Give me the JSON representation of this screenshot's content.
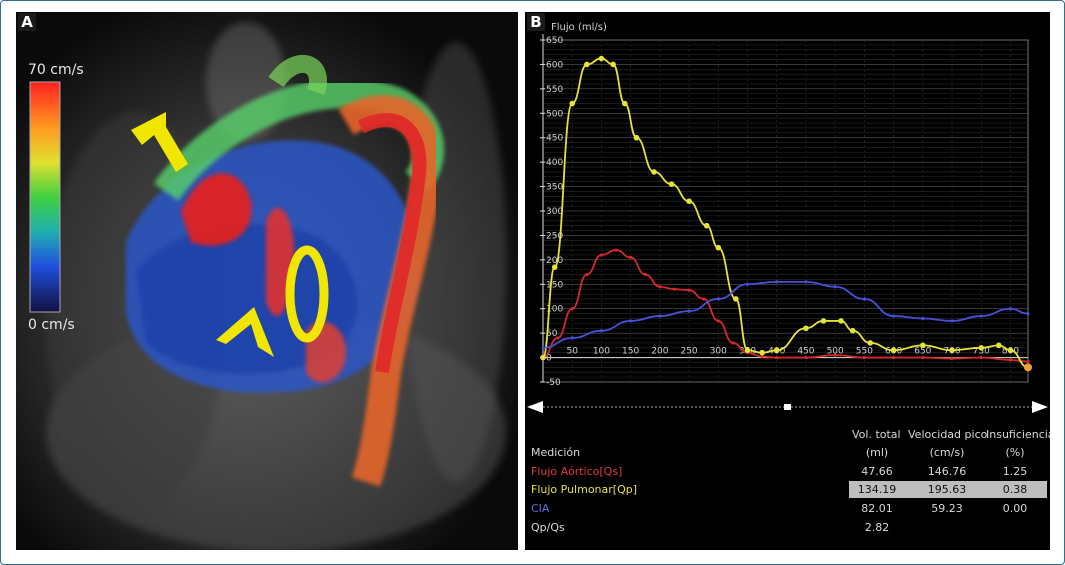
{
  "panel_a": {
    "letter": "A",
    "scale_max": "70 cm/s",
    "scale_min": "0 cm/s"
  },
  "panel_b": {
    "letter": "B",
    "y_axis_title": "Flujo (ml/s)",
    "colors": {
      "aortic": "#d42a2a",
      "pulmonar": "#e5e23a",
      "cia": "#4a4fd8"
    }
  },
  "chart_data": {
    "type": "line",
    "ylabel": "Flujo (ml/s)",
    "xlim": [
      0,
      830
    ],
    "ylim": [
      -50,
      650
    ],
    "x_ticks": [
      "50",
      "100",
      "150",
      "200",
      "250",
      "300",
      "350",
      "400",
      "450",
      "500",
      "550",
      "600",
      "650",
      "700",
      "750",
      "800"
    ],
    "y_ticks": [
      "650",
      "600",
      "550",
      "500",
      "450",
      "400",
      "350",
      "300",
      "250",
      "200",
      "150",
      "100",
      "50",
      "0",
      "-50"
    ],
    "series": [
      {
        "name": "Flujo Aórtico[Qs]",
        "color": "#d42a2a",
        "x": [
          0,
          25,
          50,
          75,
          100,
          125,
          150,
          175,
          200,
          225,
          250,
          275,
          300,
          325,
          350,
          375,
          400,
          450,
          500,
          550,
          600,
          650,
          700,
          750,
          800,
          830
        ],
        "y": [
          0,
          40,
          100,
          170,
          210,
          220,
          205,
          170,
          145,
          140,
          138,
          120,
          75,
          30,
          10,
          2,
          0,
          0,
          5,
          0,
          0,
          0,
          -2,
          0,
          -5,
          -8
        ]
      },
      {
        "name": "Flujo Pulmonar[Qp]",
        "color": "#e5e23a",
        "x": [
          0,
          20,
          50,
          75,
          100,
          120,
          140,
          160,
          190,
          220,
          250,
          280,
          300,
          330,
          350,
          375,
          400,
          450,
          480,
          510,
          530,
          560,
          600,
          650,
          700,
          750,
          780,
          800,
          830
        ],
        "y": [
          0,
          185,
          520,
          600,
          612,
          600,
          520,
          450,
          380,
          355,
          320,
          270,
          225,
          120,
          15,
          10,
          15,
          60,
          75,
          75,
          55,
          30,
          15,
          25,
          15,
          20,
          25,
          15,
          -20
        ]
      },
      {
        "name": "CIA",
        "color": "#4a4fd8",
        "x": [
          0,
          50,
          100,
          150,
          200,
          250,
          300,
          350,
          400,
          450,
          500,
          550,
          600,
          650,
          700,
          750,
          800,
          830
        ],
        "y": [
          20,
          40,
          55,
          75,
          85,
          95,
          120,
          150,
          155,
          155,
          145,
          120,
          85,
          80,
          75,
          85,
          100,
          90
        ]
      }
    ]
  },
  "table": {
    "header_row1": [
      "Vol. total",
      "Velocidad pico",
      "Insuficiencia"
    ],
    "header_row2": [
      "Medición",
      "(ml)",
      "(cm/s)",
      "(%)"
    ],
    "rows": [
      {
        "label": "Flujo Aórtico[Qs]",
        "vol": "47.66",
        "vel": "146.76",
        "ins": "1.25",
        "color": "#e03a3a"
      },
      {
        "label": "Flujo Pulmonar[Qp]",
        "vol": "134.19",
        "vel": "195.63",
        "ins": "0.38",
        "color": "#e5e23a"
      },
      {
        "label": "CIA",
        "vol": "82.01",
        "vel": "59.23",
        "ins": "0.00",
        "color": "#6a6ae0"
      },
      {
        "label": "Qp/Qs",
        "vol": "2.82",
        "vel": "",
        "ins": "",
        "color": "#d8d8d8"
      }
    ]
  }
}
